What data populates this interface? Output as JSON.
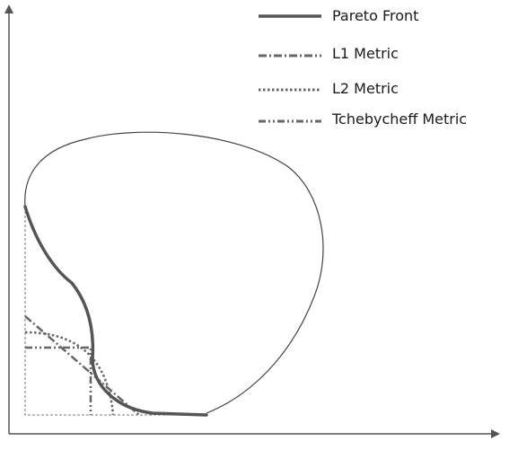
{
  "legend": {
    "items": [
      {
        "key": "pareto",
        "label": "Pareto Front",
        "style": "solid"
      },
      {
        "key": "l1",
        "label": "L1 Metric",
        "style": "dash-dot"
      },
      {
        "key": "l2",
        "label": "L2 Metric",
        "style": "dotted"
      },
      {
        "key": "tcheb",
        "label": "Tchebycheff Metric",
        "style": "dash-dot-dot"
      }
    ]
  },
  "colors": {
    "axis": "#555555",
    "region_outline": "#444444",
    "pareto": "#555555",
    "metric_lines": "#666666",
    "guides": "#777777"
  }
}
